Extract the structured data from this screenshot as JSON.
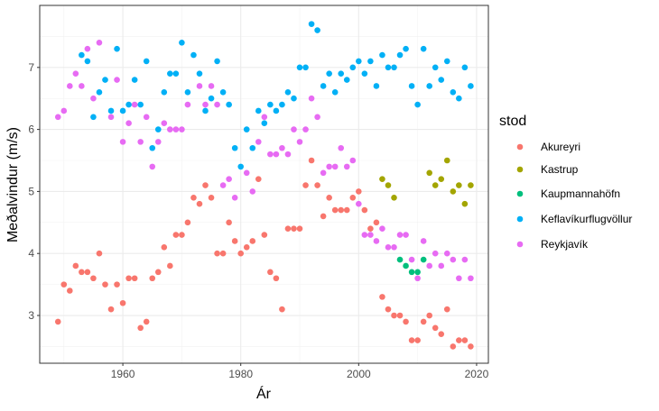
{
  "chart_data": {
    "type": "scatter",
    "title": "",
    "xlabel": "Ár",
    "ylabel": "Meðalvindur (m/s)",
    "xlim": [
      1945.9,
      2022.0
    ],
    "ylim": [
      2.23,
      8.0
    ],
    "xticks": [
      1960,
      1980,
      2000,
      2020
    ],
    "yticks": [
      3,
      4,
      5,
      6,
      7
    ],
    "grid": true,
    "legend": {
      "title": "stod",
      "placement": "right"
    },
    "series": [
      {
        "name": "Akureyri",
        "color": "#F8766D",
        "points": [
          [
            1949,
            2.9
          ],
          [
            1950,
            3.5
          ],
          [
            1951,
            3.4
          ],
          [
            1952,
            3.8
          ],
          [
            1953,
            3.7
          ],
          [
            1954,
            3.7
          ],
          [
            1955,
            3.6
          ],
          [
            1956,
            4.0
          ],
          [
            1957,
            3.5
          ],
          [
            1958,
            3.1
          ],
          [
            1959,
            3.5
          ],
          [
            1960,
            3.2
          ],
          [
            1961,
            3.6
          ],
          [
            1962,
            3.6
          ],
          [
            1963,
            2.8
          ],
          [
            1964,
            2.9
          ],
          [
            1965,
            3.6
          ],
          [
            1966,
            3.7
          ],
          [
            1967,
            4.1
          ],
          [
            1968,
            3.8
          ],
          [
            1969,
            4.3
          ],
          [
            1970,
            4.3
          ],
          [
            1971,
            4.5
          ],
          [
            1972,
            4.9
          ],
          [
            1973,
            4.8
          ],
          [
            1974,
            5.1
          ],
          [
            1975,
            4.9
          ],
          [
            1976,
            4.0
          ],
          [
            1977,
            4.0
          ],
          [
            1978,
            4.5
          ],
          [
            1979,
            4.2
          ],
          [
            1980,
            4.0
          ],
          [
            1981,
            4.1
          ],
          [
            1982,
            4.2
          ],
          [
            1983,
            5.2
          ],
          [
            1984,
            4.3
          ],
          [
            1985,
            3.7
          ],
          [
            1986,
            3.6
          ],
          [
            1987,
            3.1
          ],
          [
            1988,
            4.4
          ],
          [
            1989,
            4.4
          ],
          [
            1990,
            4.4
          ],
          [
            1991,
            5.1
          ],
          [
            1992,
            5.5
          ],
          [
            1993,
            5.1
          ],
          [
            1994,
            4.6
          ],
          [
            1995,
            4.9
          ],
          [
            1996,
            4.7
          ],
          [
            1997,
            4.7
          ],
          [
            1998,
            4.7
          ],
          [
            1999,
            4.9
          ],
          [
            2000,
            5.0
          ],
          [
            2001,
            4.7
          ],
          [
            2002,
            4.4
          ],
          [
            2003,
            4.5
          ],
          [
            2004,
            3.3
          ],
          [
            2005,
            3.1
          ],
          [
            2006,
            3.0
          ],
          [
            2007,
            3.0
          ],
          [
            2008,
            2.9
          ],
          [
            2009,
            2.6
          ],
          [
            2010,
            2.6
          ],
          [
            2011,
            2.9
          ],
          [
            2012,
            3.0
          ],
          [
            2013,
            2.8
          ],
          [
            2014,
            2.7
          ],
          [
            2015,
            3.1
          ],
          [
            2016,
            2.5
          ],
          [
            2017,
            2.6
          ],
          [
            2018,
            2.6
          ],
          [
            2019,
            2.5
          ]
        ]
      },
      {
        "name": "Kastrup",
        "color": "#A3A500",
        "points": [
          [
            2004,
            5.2
          ],
          [
            2005,
            5.1
          ],
          [
            2006,
            4.9
          ],
          [
            2012,
            5.3
          ],
          [
            2013,
            5.1
          ],
          [
            2014,
            5.2
          ],
          [
            2015,
            5.5
          ],
          [
            2016,
            5.0
          ],
          [
            2017,
            5.1
          ],
          [
            2018,
            4.8
          ],
          [
            2019,
            5.1
          ]
        ]
      },
      {
        "name": "Kaupmannahöfn",
        "color": "#00BF7D",
        "points": [
          [
            2007,
            3.9
          ],
          [
            2008,
            3.8
          ],
          [
            2009,
            3.7
          ],
          [
            2010,
            3.7
          ],
          [
            2011,
            3.9
          ]
        ]
      },
      {
        "name": "Keflavíkurflugvöllur",
        "color": "#00B0F6",
        "points": [
          [
            1953,
            7.2
          ],
          [
            1954,
            7.1
          ],
          [
            1955,
            6.2
          ],
          [
            1956,
            6.6
          ],
          [
            1957,
            6.8
          ],
          [
            1958,
            6.3
          ],
          [
            1959,
            7.3
          ],
          [
            1960,
            6.3
          ],
          [
            1961,
            6.4
          ],
          [
            1962,
            6.8
          ],
          [
            1963,
            6.4
          ],
          [
            1964,
            7.1
          ],
          [
            1965,
            5.7
          ],
          [
            1966,
            6.0
          ],
          [
            1967,
            6.6
          ],
          [
            1968,
            6.9
          ],
          [
            1969,
            6.9
          ],
          [
            1970,
            7.4
          ],
          [
            1971,
            6.6
          ],
          [
            1972,
            7.2
          ],
          [
            1973,
            6.9
          ],
          [
            1974,
            6.3
          ],
          [
            1975,
            6.5
          ],
          [
            1976,
            7.1
          ],
          [
            1977,
            6.6
          ],
          [
            1978,
            6.4
          ],
          [
            1979,
            5.7
          ],
          [
            1980,
            5.4
          ],
          [
            1981,
            6.0
          ],
          [
            1982,
            5.7
          ],
          [
            1983,
            6.3
          ],
          [
            1984,
            6.1
          ],
          [
            1985,
            6.4
          ],
          [
            1986,
            6.3
          ],
          [
            1987,
            6.4
          ],
          [
            1988,
            6.6
          ],
          [
            1989,
            6.5
          ],
          [
            1990,
            7.0
          ],
          [
            1991,
            7.0
          ],
          [
            1992,
            7.7
          ],
          [
            1993,
            7.6
          ],
          [
            1994,
            6.7
          ],
          [
            1995,
            6.9
          ],
          [
            1996,
            6.6
          ],
          [
            1997,
            6.9
          ],
          [
            1998,
            6.8
          ],
          [
            1999,
            7.0
          ],
          [
            2000,
            7.1
          ],
          [
            2001,
            6.9
          ],
          [
            2002,
            7.1
          ],
          [
            2003,
            6.7
          ],
          [
            2004,
            7.2
          ],
          [
            2005,
            7.0
          ],
          [
            2006,
            7.0
          ],
          [
            2007,
            7.2
          ],
          [
            2008,
            7.3
          ],
          [
            2009,
            6.7
          ],
          [
            2010,
            6.4
          ],
          [
            2011,
            7.3
          ],
          [
            2012,
            6.7
          ],
          [
            2013,
            7.0
          ],
          [
            2014,
            6.8
          ],
          [
            2015,
            7.1
          ],
          [
            2016,
            6.6
          ],
          [
            2017,
            6.5
          ],
          [
            2018,
            7.0
          ],
          [
            2019,
            6.7
          ]
        ]
      },
      {
        "name": "Reykjavík",
        "color": "#E76BF3",
        "points": [
          [
            1949,
            6.2
          ],
          [
            1950,
            6.3
          ],
          [
            1951,
            6.7
          ],
          [
            1952,
            6.9
          ],
          [
            1953,
            6.7
          ],
          [
            1954,
            7.3
          ],
          [
            1955,
            6.5
          ],
          [
            1956,
            7.4
          ],
          [
            1958,
            6.2
          ],
          [
            1959,
            6.8
          ],
          [
            1960,
            5.8
          ],
          [
            1961,
            6.1
          ],
          [
            1962,
            6.4
          ],
          [
            1963,
            5.8
          ],
          [
            1964,
            6.2
          ],
          [
            1965,
            5.4
          ],
          [
            1966,
            5.8
          ],
          [
            1967,
            6.1
          ],
          [
            1968,
            6.0
          ],
          [
            1969,
            6.0
          ],
          [
            1970,
            6.0
          ],
          [
            1971,
            6.4
          ],
          [
            1973,
            6.7
          ],
          [
            1974,
            6.4
          ],
          [
            1975,
            6.7
          ],
          [
            1976,
            6.4
          ],
          [
            1977,
            5.1
          ],
          [
            1978,
            5.2
          ],
          [
            1979,
            4.9
          ],
          [
            1981,
            5.3
          ],
          [
            1982,
            5.0
          ],
          [
            1983,
            5.8
          ],
          [
            1984,
            6.2
          ],
          [
            1985,
            5.6
          ],
          [
            1986,
            5.6
          ],
          [
            1987,
            5.7
          ],
          [
            1988,
            5.6
          ],
          [
            1989,
            6.0
          ],
          [
            1990,
            5.8
          ],
          [
            1991,
            6.0
          ],
          [
            1992,
            6.5
          ],
          [
            1993,
            6.2
          ],
          [
            1994,
            5.3
          ],
          [
            1995,
            5.4
          ],
          [
            1996,
            5.4
          ],
          [
            1997,
            5.7
          ],
          [
            1998,
            5.4
          ],
          [
            1999,
            5.5
          ],
          [
            2000,
            4.8
          ],
          [
            2001,
            4.3
          ],
          [
            2002,
            4.3
          ],
          [
            2003,
            4.2
          ],
          [
            2004,
            4.4
          ],
          [
            2005,
            4.1
          ],
          [
            2006,
            4.1
          ],
          [
            2007,
            4.3
          ],
          [
            2008,
            4.3
          ],
          [
            2009,
            3.9
          ],
          [
            2010,
            3.6
          ],
          [
            2011,
            4.2
          ],
          [
            2012,
            3.8
          ],
          [
            2013,
            4.0
          ],
          [
            2014,
            3.8
          ],
          [
            2015,
            4.0
          ],
          [
            2016,
            3.9
          ],
          [
            2017,
            3.6
          ],
          [
            2018,
            3.9
          ],
          [
            2019,
            3.6
          ]
        ]
      }
    ]
  }
}
